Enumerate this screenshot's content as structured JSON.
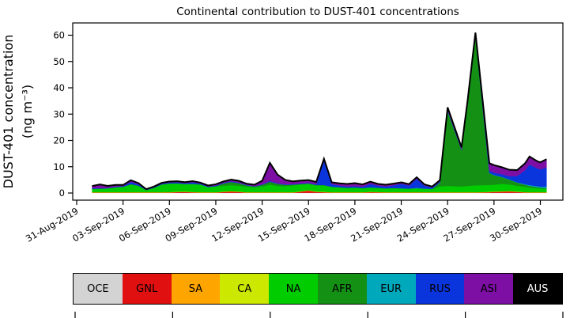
{
  "page": {
    "background": "#ffffff"
  },
  "chart_data": {
    "type": "area",
    "stacked": true,
    "title": "Continental contribution to DUST-401 concentrations",
    "ylabel_line1": "DUST-401 concentration",
    "ylabel_line2": "(ng m⁻³)",
    "x_unit": "days since 31-Aug-2019",
    "grid": false,
    "outline_color": "#000000",
    "ylim": [
      -2.7,
      64.5
    ],
    "xlim": [
      -0.3,
      31.5
    ],
    "y_ticks": [
      0,
      10,
      20,
      30,
      40,
      50,
      60
    ],
    "x_tick_days": [
      0,
      3,
      6,
      9,
      12,
      15,
      18,
      21,
      24,
      27,
      30
    ],
    "x_tick_labels": [
      "31-Aug-2019",
      "03-Sep-2019",
      "06-Sep-2019",
      "09-Sep-2019",
      "12-Sep-2019",
      "15-Sep-2019",
      "18-Sep-2019",
      "21-Sep-2019",
      "24-Sep-2019",
      "27-Sep-2019",
      "30-Sep-2019"
    ],
    "x": [
      1,
      1.5,
      2,
      2.5,
      3,
      3.5,
      4,
      4.5,
      5,
      5.5,
      6,
      6.5,
      7,
      7.5,
      8,
      8.5,
      9,
      9.5,
      10,
      10.5,
      11,
      11.5,
      12,
      12.5,
      13,
      13.5,
      14,
      14.5,
      15,
      15.5,
      16,
      16.5,
      17,
      17.5,
      18,
      18.5,
      19,
      19.5,
      20,
      20.5,
      21,
      21.5,
      22,
      22.5,
      23,
      23.5,
      24,
      24.9,
      25.3,
      25.8,
      26.7,
      27,
      27.5,
      28,
      28.5,
      29,
      29.3,
      29.8,
      30,
      30.4
    ],
    "series": [
      {
        "name": "OCE",
        "color": "#d3d3d3",
        "values": [
          0.1,
          0.1,
          0.1,
          0.1,
          0.1,
          0.1,
          0.1,
          0.1,
          0.1,
          0.1,
          0.1,
          0.1,
          0.1,
          0.1,
          0.1,
          0.1,
          0.1,
          0.1,
          0.1,
          0.1,
          0.1,
          0.1,
          0.1,
          0.1,
          0.1,
          0.1,
          0.1,
          0.1,
          0.1,
          0.1,
          0.1,
          0.1,
          0.1,
          0.1,
          0.1,
          0.1,
          0.1,
          0.1,
          0.1,
          0.1,
          0.1,
          0.1,
          0.1,
          0.1,
          0.1,
          0.1,
          0.1,
          0.1,
          0.1,
          0.1,
          0.1,
          0.1,
          0.1,
          0.1,
          0.1,
          0.1,
          0.1,
          0.1,
          0.1,
          0.1
        ]
      },
      {
        "name": "GNL",
        "color": "#e01010",
        "values": [
          0.05,
          0.05,
          0.05,
          0.05,
          0.05,
          0.05,
          0.05,
          0.05,
          0.05,
          0.05,
          0.1,
          0.25,
          0.3,
          0.15,
          0.05,
          0.05,
          0.05,
          0.3,
          0.45,
          0.3,
          0.05,
          0.05,
          0.05,
          0.05,
          0.05,
          0.05,
          0.05,
          0.4,
          0.8,
          0.3,
          0.2,
          0.05,
          0.05,
          0.05,
          0.05,
          0.05,
          0.2,
          0.15,
          0.05,
          0.05,
          0.05,
          0.05,
          0.05,
          0.05,
          0.05,
          0.05,
          0.05,
          0.05,
          0.05,
          0.05,
          0.2,
          0.3,
          0.4,
          0.5,
          0.3,
          0.1,
          0.05,
          0.05,
          0.05,
          0.05
        ]
      },
      {
        "name": "SA",
        "color": "#ffa500",
        "values": [
          0.12,
          0.12,
          0.12,
          0.12,
          0.12,
          0.12,
          0.12,
          0.12,
          0.12,
          0.12,
          0.12,
          0.12,
          0.12,
          0.12,
          0.12,
          0.12,
          0.12,
          0.12,
          0.12,
          0.12,
          0.12,
          0.12,
          0.12,
          0.12,
          0.12,
          0.12,
          0.12,
          0.12,
          0.12,
          0.12,
          0.12,
          0.12,
          0.12,
          0.12,
          0.12,
          0.12,
          0.12,
          0.12,
          0.12,
          0.12,
          0.12,
          0.12,
          0.12,
          0.12,
          0.12,
          0.12,
          0.12,
          0.12,
          0.12,
          0.12,
          0.12,
          0.12,
          0.12,
          0.12,
          0.12,
          0.12,
          0.12,
          0.12,
          0.12,
          0.12
        ]
      },
      {
        "name": "CA",
        "color": "#cce800",
        "values": [
          0.05,
          0.05,
          0.05,
          0.05,
          0.05,
          0.05,
          0.05,
          0.05,
          0.05,
          0.05,
          0.05,
          0.05,
          0.05,
          0.05,
          0.05,
          0.05,
          0.05,
          0.05,
          0.05,
          0.05,
          0.05,
          0.05,
          0.05,
          0.05,
          0.05,
          0.05,
          0.05,
          0.05,
          0.05,
          0.05,
          0.05,
          0.05,
          0.05,
          0.05,
          0.05,
          0.05,
          0.05,
          0.05,
          0.05,
          0.05,
          0.05,
          0.05,
          0.05,
          0.05,
          0.05,
          0.05,
          0.05,
          0.05,
          0.05,
          0.05,
          0.05,
          0.05,
          0.05,
          0.05,
          0.05,
          0.05,
          0.05,
          0.05,
          0.05,
          0.05
        ]
      },
      {
        "name": "NA",
        "color": "#00cc00",
        "values": [
          1.2,
          1.3,
          1.4,
          1.8,
          2.0,
          2.9,
          2.4,
          0.8,
          1.6,
          2.9,
          3.2,
          3.1,
          2.8,
          3.0,
          2.9,
          1.9,
          2.2,
          2.2,
          2.3,
          2.2,
          2.1,
          1.9,
          2.2,
          2.9,
          2.4,
          2.3,
          2.6,
          2.6,
          2.4,
          2.3,
          2.4,
          2.0,
          1.8,
          1.6,
          1.7,
          1.5,
          1.6,
          1.5,
          1.4,
          1.5,
          1.4,
          1.3,
          1.4,
          1.3,
          1.2,
          2.2,
          2.4,
          2.2,
          2.4,
          2.6,
          2.6,
          2.6,
          2.8,
          2.5,
          2.2,
          2.0,
          1.8,
          1.5,
          1.4,
          1.3
        ]
      },
      {
        "name": "AFR",
        "color": "#149114",
        "values": [
          0.1,
          0.1,
          0.1,
          0.1,
          0.1,
          0.2,
          0.1,
          0.05,
          0.1,
          0.1,
          0.1,
          0.1,
          0.1,
          0.1,
          0.1,
          0.1,
          0.1,
          0.9,
          1.2,
          1.0,
          0.5,
          0.3,
          0.6,
          1.1,
          0.8,
          0.5,
          0.3,
          0.2,
          0.2,
          0.2,
          0.2,
          0.1,
          0.1,
          0.1,
          0.1,
          0.1,
          0.1,
          0.1,
          0.1,
          0.1,
          0.1,
          0.1,
          0.1,
          0.1,
          0.1,
          1.5,
          28.5,
          13.8,
          31.5,
          56.5,
          4.5,
          3.6,
          2.6,
          1.8,
          1.2,
          0.8,
          0.6,
          0.4,
          0.3,
          0.3
        ]
      },
      {
        "name": "EUR",
        "color": "#00a8bc",
        "values": [
          0,
          0,
          0,
          0,
          0,
          0,
          0,
          0,
          0,
          0,
          0,
          0,
          0,
          0,
          0,
          0,
          0,
          0,
          0,
          0,
          0,
          0,
          0,
          0,
          0,
          0,
          0,
          0,
          0,
          0,
          0,
          0,
          0,
          0,
          0,
          0,
          0,
          0,
          0,
          0,
          0,
          0,
          0.2,
          0,
          0,
          0,
          0,
          0,
          0,
          0,
          0.1,
          0.1,
          0.1,
          0.1,
          0.1,
          0.2,
          0.3,
          0.4,
          0.4,
          0.5
        ]
      },
      {
        "name": "RUS",
        "color": "#0a35dd",
        "values": [
          0.2,
          0.2,
          0.15,
          0.2,
          0.2,
          0.8,
          0.5,
          0.1,
          0.2,
          0.25,
          0.35,
          0.4,
          0.3,
          0.55,
          0.3,
          0.2,
          0.25,
          0.2,
          0.25,
          0.2,
          0.15,
          0.1,
          0.2,
          0.3,
          0.2,
          0.2,
          0.15,
          0.2,
          0.2,
          0.3,
          9.2,
          1.0,
          0.6,
          0.5,
          0.5,
          0.5,
          1.3,
          0.8,
          0.7,
          1.0,
          1.7,
          1.1,
          3.4,
          1.1,
          0.5,
          0.3,
          0.3,
          0.2,
          0.25,
          0.3,
          0.8,
          0.9,
          1.0,
          1.2,
          2.4,
          5.2,
          7.8,
          6.8,
          6.6,
          7.2
        ]
      },
      {
        "name": "ASI",
        "color": "#7d0fa5",
        "values": [
          0.8,
          1.3,
          0.7,
          0.6,
          0.4,
          0.6,
          0.4,
          0.15,
          0.2,
          0.25,
          0.3,
          0.3,
          0.3,
          0.4,
          0.3,
          0.3,
          0.4,
          0.5,
          0.6,
          0.6,
          0.4,
          0.5,
          1.3,
          6.8,
          3.2,
          1.6,
          1.0,
          1.0,
          1.0,
          0.8,
          0.7,
          0.6,
          0.8,
          0.9,
          1.1,
          0.8,
          0.8,
          0.6,
          0.6,
          0.6,
          0.5,
          0.5,
          0.5,
          0.4,
          0.3,
          0.5,
          1.0,
          0.8,
          1.0,
          1.2,
          2.8,
          2.8,
          2.6,
          2.4,
          2.2,
          2.6,
          3.0,
          2.6,
          2.6,
          3.2
        ]
      },
      {
        "name": "AUS",
        "color": "#000000",
        "values": [
          0.05,
          0.05,
          0.05,
          0.05,
          0.05,
          0.05,
          0.05,
          0.05,
          0.05,
          0.05,
          0.05,
          0.05,
          0.05,
          0.05,
          0.05,
          0.05,
          0.05,
          0.05,
          0.05,
          0.05,
          0.05,
          0.05,
          0.05,
          0.05,
          0.05,
          0.05,
          0.05,
          0.05,
          0.05,
          0.05,
          0.05,
          0.05,
          0.05,
          0.05,
          0.05,
          0.05,
          0.05,
          0.05,
          0.05,
          0.05,
          0.05,
          0.05,
          0.05,
          0.05,
          0.05,
          0.05,
          0.05,
          0.05,
          0.05,
          0.05,
          0.05,
          0.05,
          0.05,
          0.05,
          0.05,
          0.05,
          0.05,
          0.05,
          0.05,
          0.05
        ]
      }
    ]
  },
  "legend": {
    "items": [
      {
        "label": "OCE",
        "color": "#d3d3d3",
        "text_color": "#000000"
      },
      {
        "label": "GNL",
        "color": "#e01010",
        "text_color": "#000000"
      },
      {
        "label": "SA",
        "color": "#ffa500",
        "text_color": "#000000"
      },
      {
        "label": "CA",
        "color": "#cce800",
        "text_color": "#000000"
      },
      {
        "label": "NA",
        "color": "#00cc00",
        "text_color": "#000000"
      },
      {
        "label": "AFR",
        "color": "#149114",
        "text_color": "#000000"
      },
      {
        "label": "EUR",
        "color": "#00a8bc",
        "text_color": "#000000"
      },
      {
        "label": "RUS",
        "color": "#0a35dd",
        "text_color": "#000000"
      },
      {
        "label": "ASI",
        "color": "#7d0fa5",
        "text_color": "#000000"
      },
      {
        "label": "AUS",
        "color": "#000000",
        "text_color": "#ffffff"
      }
    ]
  }
}
